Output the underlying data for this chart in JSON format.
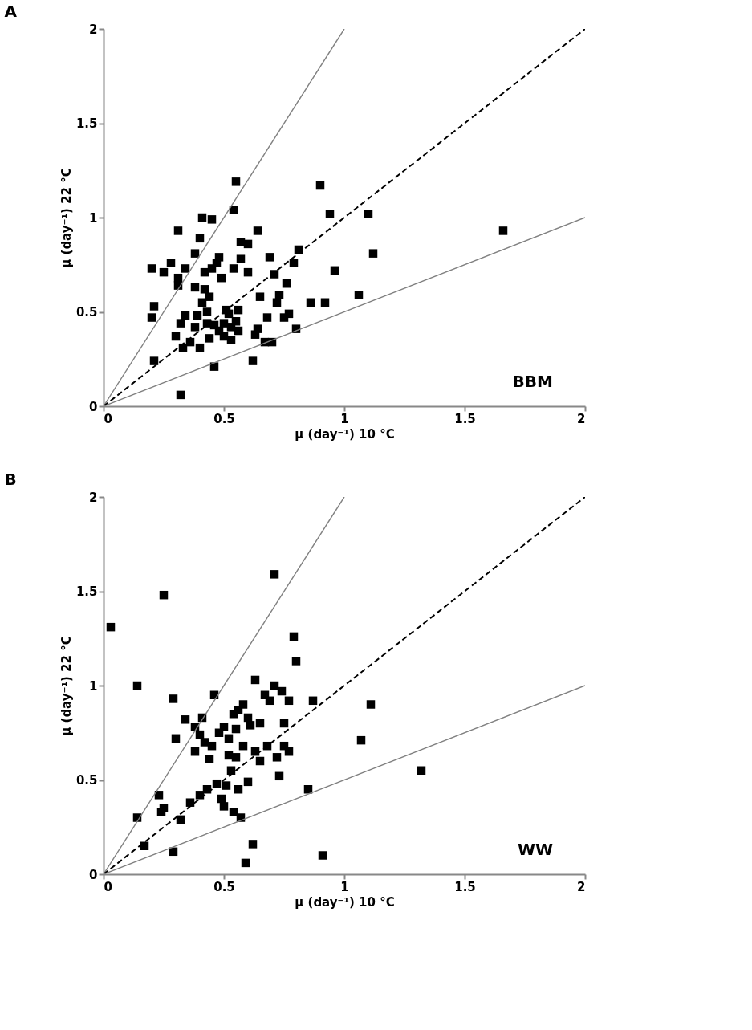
{
  "chart_data": [
    {
      "type": "scatter",
      "title": "A",
      "xlabel": "μ (day⁻¹) 10 °C",
      "ylabel": "μ (day⁻¹) 22 °C",
      "annotations": [
        "BBM"
      ],
      "xlim": [
        0,
        2
      ],
      "ylim": [
        0,
        2
      ],
      "xticks": [
        0,
        0.5,
        1,
        1.5,
        2
      ],
      "yticks": [
        0,
        0.5,
        1,
        1.5,
        2
      ],
      "series": [
        {
          "type": "scatter",
          "marker": "square",
          "color": "#000000",
          "x": [
            0.2,
            0.2,
            0.21,
            0.21,
            0.25,
            0.28,
            0.3,
            0.31,
            0.31,
            0.31,
            0.32,
            0.33,
            0.34,
            0.34,
            0.32,
            0.36,
            0.38,
            0.38,
            0.38,
            0.39,
            0.4,
            0.4,
            0.41,
            0.41,
            0.42,
            0.42,
            0.43,
            0.43,
            0.44,
            0.44,
            0.45,
            0.45,
            0.46,
            0.46,
            0.47,
            0.48,
            0.48,
            0.49,
            0.5,
            0.5,
            0.51,
            0.52,
            0.53,
            0.53,
            0.54,
            0.54,
            0.55,
            0.55,
            0.56,
            0.56,
            0.57,
            0.57,
            0.6,
            0.6,
            0.62,
            0.63,
            0.64,
            0.64,
            0.65,
            0.67,
            0.68,
            0.69,
            0.7,
            0.71,
            0.72,
            0.73,
            0.75,
            0.76,
            0.77,
            0.79,
            0.8,
            0.81,
            0.86,
            0.9,
            0.92,
            0.94,
            0.96,
            1.06,
            1.1,
            1.12,
            1.66
          ],
          "values": [
            0.73,
            0.47,
            0.53,
            0.24,
            0.71,
            0.76,
            0.37,
            0.93,
            0.64,
            0.68,
            0.44,
            0.31,
            0.73,
            0.48,
            0.06,
            0.34,
            0.81,
            0.63,
            0.42,
            0.48,
            0.89,
            0.31,
            1.0,
            0.55,
            0.71,
            0.62,
            0.44,
            0.5,
            0.58,
            0.36,
            0.73,
            0.99,
            0.21,
            0.43,
            0.76,
            0.79,
            0.4,
            0.68,
            0.37,
            0.44,
            0.51,
            0.49,
            0.35,
            0.42,
            1.04,
            0.73,
            1.19,
            0.45,
            0.4,
            0.51,
            0.78,
            0.87,
            0.86,
            0.71,
            0.24,
            0.38,
            0.93,
            0.41,
            0.58,
            0.34,
            0.47,
            0.79,
            0.34,
            0.7,
            0.55,
            0.59,
            0.47,
            0.65,
            0.49,
            0.76,
            0.41,
            0.83,
            0.55,
            1.17,
            0.55,
            1.02,
            0.72,
            0.59,
            1.02,
            0.81,
            0.93
          ]
        },
        {
          "type": "line",
          "color": "#808080",
          "line_style": "solid",
          "x": [
            0,
            1
          ],
          "values": [
            0,
            2
          ]
        },
        {
          "type": "line",
          "color": "#000000",
          "line_style": "dashed",
          "x": [
            0,
            2
          ],
          "values": [
            0,
            2
          ]
        },
        {
          "type": "line",
          "color": "#808080",
          "line_style": "solid",
          "x": [
            0,
            2
          ],
          "values": [
            0,
            1
          ]
        }
      ]
    },
    {
      "type": "scatter",
      "title": "B",
      "xlabel": "μ (day⁻¹) 10 °C",
      "ylabel": "μ (day⁻¹) 22 °C",
      "annotations": [
        "WW"
      ],
      "xlim": [
        0,
        2
      ],
      "ylim": [
        0,
        2
      ],
      "xticks": [
        0,
        0.5,
        1,
        1.5,
        2
      ],
      "yticks": [
        0,
        0.5,
        1,
        1.5,
        2
      ],
      "series": [
        {
          "type": "scatter",
          "marker": "square",
          "color": "#000000",
          "x": [
            0.03,
            0.14,
            0.14,
            0.17,
            0.23,
            0.24,
            0.25,
            0.25,
            0.29,
            0.29,
            0.3,
            0.32,
            0.34,
            0.36,
            0.38,
            0.38,
            0.4,
            0.4,
            0.41,
            0.42,
            0.43,
            0.44,
            0.45,
            0.46,
            0.47,
            0.48,
            0.49,
            0.5,
            0.5,
            0.51,
            0.52,
            0.52,
            0.53,
            0.54,
            0.54,
            0.55,
            0.55,
            0.56,
            0.56,
            0.57,
            0.58,
            0.58,
            0.59,
            0.6,
            0.6,
            0.61,
            0.62,
            0.63,
            0.63,
            0.65,
            0.65,
            0.67,
            0.68,
            0.69,
            0.71,
            0.71,
            0.72,
            0.73,
            0.74,
            0.75,
            0.75,
            0.77,
            0.77,
            0.79,
            0.8,
            0.85,
            0.87,
            0.91,
            1.07,
            1.11,
            1.32
          ],
          "values": [
            1.31,
            1.0,
            0.3,
            0.15,
            0.42,
            0.33,
            1.48,
            0.35,
            0.93,
            0.12,
            0.72,
            0.29,
            0.82,
            0.38,
            0.65,
            0.78,
            0.42,
            0.74,
            0.83,
            0.7,
            0.45,
            0.61,
            0.68,
            0.95,
            0.48,
            0.75,
            0.4,
            0.36,
            0.78,
            0.47,
            0.63,
            0.72,
            0.55,
            0.85,
            0.33,
            0.62,
            0.77,
            0.87,
            0.45,
            0.3,
            0.68,
            0.9,
            0.06,
            0.49,
            0.83,
            0.79,
            0.16,
            1.03,
            0.65,
            0.6,
            0.8,
            0.95,
            0.68,
            0.92,
            1.59,
            1.0,
            0.62,
            0.52,
            0.97,
            0.8,
            0.68,
            0.92,
            0.65,
            1.26,
            1.13,
            0.45,
            0.92,
            0.1,
            0.71,
            0.9,
            0.55
          ]
        },
        {
          "type": "line",
          "color": "#808080",
          "line_style": "solid",
          "x": [
            0,
            1
          ],
          "values": [
            0,
            2
          ]
        },
        {
          "type": "line",
          "color": "#000000",
          "line_style": "dashed",
          "x": [
            0,
            2
          ],
          "values": [
            0,
            2
          ]
        },
        {
          "type": "line",
          "color": "#808080",
          "line_style": "solid",
          "x": [
            0,
            2
          ],
          "values": [
            0,
            1
          ]
        }
      ]
    }
  ]
}
